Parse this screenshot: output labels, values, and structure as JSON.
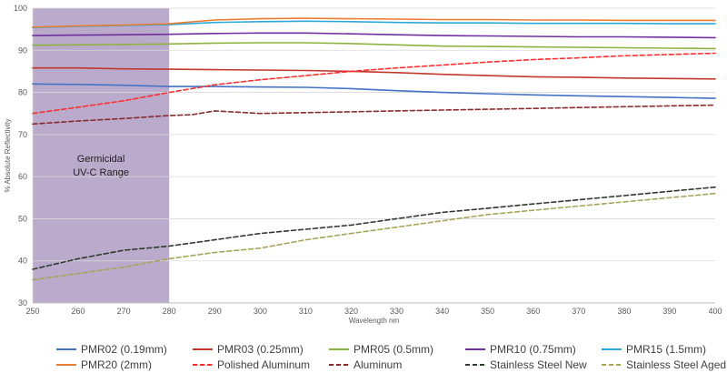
{
  "chart_data": {
    "type": "line",
    "title": "",
    "xlabel": "Wavelength nm",
    "ylabel": "% Absolute Reflectivity",
    "xlim": [
      250,
      400
    ],
    "ylim": [
      30,
      100
    ],
    "xticks": [
      250,
      260,
      270,
      280,
      290,
      300,
      310,
      320,
      330,
      340,
      350,
      360,
      370,
      380,
      390,
      400
    ],
    "yticks": [
      30,
      40,
      50,
      60,
      70,
      80,
      90,
      100
    ],
    "grid": "horizontal",
    "legend_position": "bottom",
    "shaded_region": {
      "x_from": 250,
      "x_to": 280,
      "label_lines": [
        "Germicidal",
        "UV-C Range"
      ],
      "color": "#b3a2c7"
    },
    "series": [
      {
        "name": "PMR02 (0.19mm)",
        "color": "#4472c4",
        "dash": "solid",
        "x": [
          250,
          260,
          270,
          280,
          290,
          300,
          310,
          320,
          330,
          340,
          350,
          360,
          370,
          380,
          390,
          400
        ],
        "y": [
          82.0,
          81.9,
          81.7,
          81.4,
          81.4,
          81.3,
          81.2,
          80.9,
          80.4,
          80.0,
          79.7,
          79.4,
          79.2,
          79.0,
          78.8,
          78.6
        ]
      },
      {
        "name": "PMR03 (0.25mm)",
        "color": "#c0392b",
        "dash": "solid",
        "x": [
          250,
          260,
          270,
          280,
          290,
          300,
          310,
          320,
          330,
          340,
          350,
          360,
          370,
          380,
          390,
          400
        ],
        "y": [
          85.8,
          85.8,
          85.6,
          85.5,
          85.4,
          85.3,
          85.2,
          85.0,
          84.7,
          84.3,
          84.0,
          83.7,
          83.6,
          83.4,
          83.3,
          83.2
        ]
      },
      {
        "name": "PMR05 (0.5mm)",
        "color": "#8db33f",
        "dash": "solid",
        "x": [
          250,
          260,
          270,
          280,
          290,
          300,
          310,
          320,
          330,
          340,
          350,
          360,
          370,
          380,
          390,
          400
        ],
        "y": [
          91.2,
          91.3,
          91.4,
          91.5,
          91.7,
          91.8,
          91.8,
          91.6,
          91.3,
          91.0,
          90.9,
          90.8,
          90.7,
          90.6,
          90.5,
          90.4
        ]
      },
      {
        "name": "PMR10 (0.75mm)",
        "color": "#7030a0",
        "dash": "solid",
        "x": [
          250,
          260,
          270,
          280,
          290,
          300,
          310,
          320,
          330,
          340,
          350,
          360,
          370,
          380,
          390,
          400
        ],
        "y": [
          93.5,
          93.6,
          93.7,
          93.8,
          94.0,
          94.1,
          94.1,
          93.9,
          93.7,
          93.5,
          93.4,
          93.3,
          93.2,
          93.2,
          93.1,
          93.0
        ]
      },
      {
        "name": "PMR15 (1.5mm)",
        "color": "#2ea8d8",
        "dash": "solid",
        "x": [
          250,
          260,
          270,
          280,
          290,
          300,
          310,
          320,
          330,
          340,
          350,
          360,
          370,
          380,
          390,
          400
        ],
        "y": [
          95.4,
          95.7,
          95.9,
          96.1,
          96.6,
          96.8,
          96.9,
          96.8,
          96.6,
          96.5,
          96.5,
          96.4,
          96.4,
          96.4,
          96.3,
          96.3
        ]
      },
      {
        "name": "PMR20 (2mm)",
        "color": "#ed7d31",
        "dash": "solid",
        "x": [
          250,
          260,
          270,
          280,
          290,
          300,
          310,
          320,
          330,
          340,
          350,
          360,
          370,
          380,
          390,
          400
        ],
        "y": [
          95.5,
          95.8,
          96.0,
          96.3,
          97.2,
          97.5,
          97.6,
          97.5,
          97.4,
          97.3,
          97.3,
          97.2,
          97.2,
          97.1,
          97.1,
          97.1
        ]
      },
      {
        "name": "Polished Aluminum",
        "color": "#ff2d2d",
        "dash": "dashed",
        "x": [
          250,
          260,
          270,
          280,
          290,
          300,
          310,
          320,
          330,
          340,
          350,
          360,
          370,
          380,
          390,
          400
        ],
        "y": [
          75.0,
          76.5,
          78.0,
          80.0,
          81.8,
          83.0,
          84.0,
          85.0,
          85.8,
          86.5,
          87.2,
          87.8,
          88.2,
          88.7,
          89.0,
          89.3
        ]
      },
      {
        "name": "Aluminum",
        "color": "#8b2a2a",
        "dash": "dashed",
        "x": [
          250,
          260,
          270,
          280,
          285,
          290,
          300,
          310,
          320,
          330,
          340,
          350,
          360,
          370,
          380,
          390,
          400
        ],
        "y": [
          72.5,
          73.2,
          73.8,
          74.5,
          74.7,
          75.6,
          75.0,
          75.2,
          75.4,
          75.6,
          75.8,
          76.0,
          76.2,
          76.4,
          76.6,
          76.8,
          77.0
        ]
      },
      {
        "name": "Stainless Steel New",
        "color": "#2f3b2f",
        "dash": "dashed",
        "x": [
          250,
          260,
          270,
          280,
          290,
          300,
          310,
          320,
          330,
          340,
          350,
          360,
          370,
          380,
          390,
          400
        ],
        "y": [
          38.0,
          40.5,
          42.5,
          43.5,
          45.0,
          46.5,
          47.5,
          48.5,
          50.0,
          51.5,
          52.5,
          53.5,
          54.5,
          55.5,
          56.5,
          57.5
        ]
      },
      {
        "name": "Stainless Steel Aged",
        "color": "#a7a55a",
        "dash": "dashed",
        "x": [
          250,
          260,
          270,
          280,
          290,
          300,
          310,
          320,
          330,
          340,
          350,
          360,
          370,
          380,
          390,
          400
        ],
        "y": [
          35.5,
          37.0,
          38.5,
          40.5,
          42.0,
          43.0,
          45.0,
          46.5,
          48.0,
          49.5,
          51.0,
          52.0,
          53.0,
          54.0,
          55.0,
          56.0
        ]
      }
    ]
  }
}
